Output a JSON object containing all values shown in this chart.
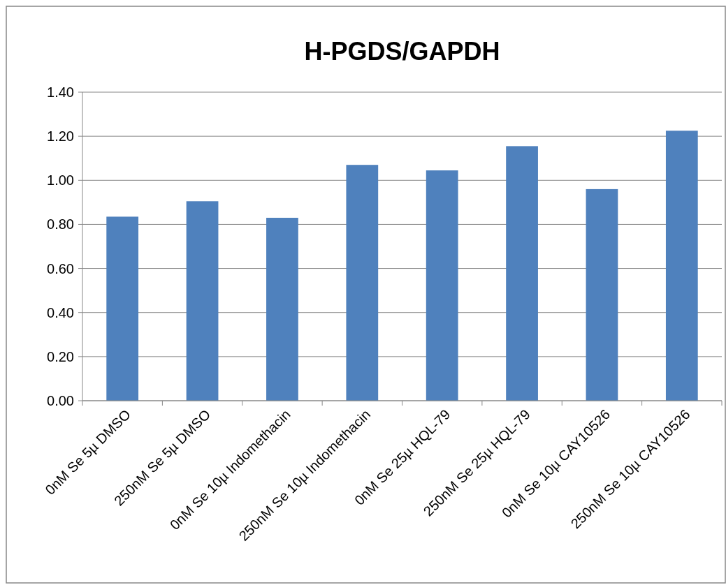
{
  "chart_data": {
    "type": "bar",
    "title": "H-PGDS/GAPDH",
    "categories": [
      "0nM Se 5µ DMSO",
      "250nM Se 5µ DMSO",
      "0nM Se 10µ Indomethacin",
      "250nM Se 10µ Indomethacin",
      "0nM Se 25µ HQL-79",
      "250nM Se 25µ HQL-79",
      "0nM Se 10µ CAY10526",
      "250nM Se 10µ CAY10526"
    ],
    "values": [
      0.835,
      0.905,
      0.83,
      1.07,
      1.045,
      1.155,
      0.96,
      1.225
    ],
    "color": "#4f81bd",
    "ylim": [
      0,
      1.4
    ],
    "yticks": [
      {
        "value": 0,
        "label": "0.00"
      },
      {
        "value": 0.2,
        "label": "0.20"
      },
      {
        "value": 0.4,
        "label": "0.40"
      },
      {
        "value": 0.6,
        "label": "0.60"
      },
      {
        "value": 0.8,
        "label": "0.80"
      },
      {
        "value": 1,
        "label": "1.00"
      },
      {
        "value": 1.2,
        "label": "1.20"
      },
      {
        "value": 1.4,
        "label": "1.40"
      }
    ],
    "grid": "y"
  }
}
